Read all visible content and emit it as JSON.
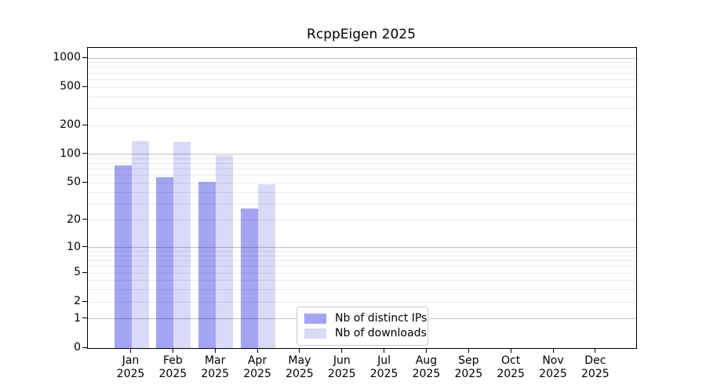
{
  "chart_data": {
    "type": "bar",
    "title": "RcppEigen 2025",
    "categories": [
      "Jan",
      "Feb",
      "Mar",
      "Apr",
      "May",
      "Jun",
      "Jul",
      "Aug",
      "Sep",
      "Oct",
      "Nov",
      "Dec"
    ],
    "category_year": "2025",
    "series": [
      {
        "name": "Nb of distinct IPs",
        "color": "#a4a4f4",
        "values": [
          77,
          58,
          51,
          27,
          0,
          0,
          0,
          0,
          0,
          0,
          0,
          0
        ]
      },
      {
        "name": "Nb of downloads",
        "color": "#d9d9f8",
        "values": [
          137,
          135,
          97,
          49,
          0,
          0,
          0,
          0,
          0,
          0,
          0,
          0
        ]
      }
    ],
    "y_ticks": [
      0,
      1,
      2,
      5,
      10,
      20,
      50,
      100,
      200,
      500,
      1000
    ],
    "y_major_gridlines": [
      1,
      10,
      100,
      1000
    ],
    "scale": "log1p",
    "ylim": [
      0,
      1276
    ],
    "xlabel": "",
    "ylabel": "",
    "grid": true,
    "legend_position": "lower-center"
  },
  "colors": {
    "distinct_ips": "#a4a4f4",
    "downloads": "#d9d9f8",
    "spine": "#000000",
    "background": "#ffffff"
  }
}
